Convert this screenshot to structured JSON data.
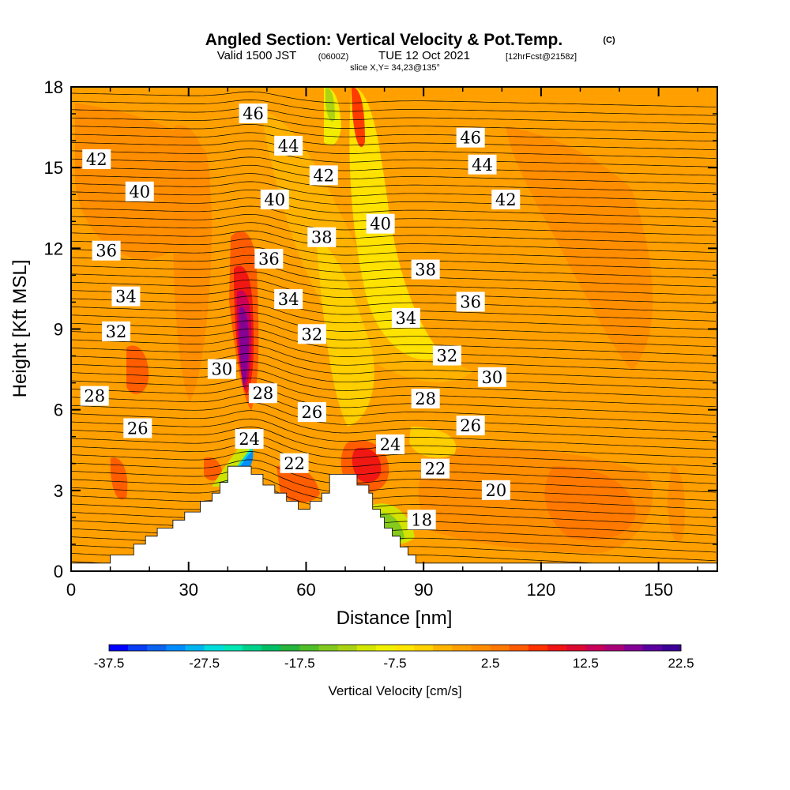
{
  "header": {
    "title": "Angled Section: Vertical Velocity & Pot.Temp.",
    "copyright": "(C)",
    "valid_prefix": "Valid 1500 JST",
    "valid_utc": "(0600Z)",
    "valid_date": "TUE 12 Oct 2021",
    "forecast": "[12hrFcst@2158z]",
    "slice": "slice X,Y= 34,23@135°"
  },
  "chart_data": {
    "type": "heatmap",
    "xlabel": "Distance [nm]",
    "ylabel": "Height [Kft MSL]",
    "xlim": [
      0,
      165
    ],
    "ylim": [
      0,
      18
    ],
    "x_ticks": [
      "0",
      "30",
      "60",
      "90",
      "120",
      "150"
    ],
    "y_ticks": [
      "0",
      "3",
      "6",
      "9",
      "12",
      "15",
      "18"
    ],
    "colorbar": {
      "label": "Vertical Velocity [cm/s]",
      "tick_labels": [
        "-37.5",
        "-27.5",
        "-17.5",
        "-7.5",
        "2.5",
        "12.5",
        "22.5"
      ],
      "min": -37.5,
      "max": 22.5,
      "step": 2.5,
      "colors": [
        "#0000ff",
        "#0a3cf5",
        "#0a64f0",
        "#008cff",
        "#00b4f0",
        "#00dcdc",
        "#00e6b4",
        "#00d28c",
        "#00be64",
        "#28b43c",
        "#50be28",
        "#82c81e",
        "#aad214",
        "#d2e600",
        "#f0f000",
        "#ffe600",
        "#ffd200",
        "#ffb400",
        "#ffa000",
        "#ff8c00",
        "#ff7800",
        "#ff5a00",
        "#ff3200",
        "#f01414",
        "#dc0a32",
        "#c8005a",
        "#aa0078",
        "#820096",
        "#5a00a0",
        "#3c0096"
      ]
    },
    "terrain": [
      [
        0,
        0.3
      ],
      [
        10,
        0.3
      ],
      [
        10,
        0.6
      ],
      [
        16,
        0.6
      ],
      [
        16,
        1.0
      ],
      [
        19,
        1.0
      ],
      [
        19,
        1.3
      ],
      [
        22,
        1.3
      ],
      [
        22,
        1.6
      ],
      [
        26,
        1.6
      ],
      [
        26,
        1.9
      ],
      [
        29,
        1.9
      ],
      [
        29,
        2.2
      ],
      [
        33,
        2.2
      ],
      [
        33,
        2.6
      ],
      [
        36,
        2.6
      ],
      [
        36,
        2.9
      ],
      [
        38,
        2.9
      ],
      [
        38,
        3.3
      ],
      [
        40,
        3.3
      ],
      [
        40,
        3.9
      ],
      [
        46,
        3.9
      ],
      [
        46,
        3.6
      ],
      [
        49,
        3.6
      ],
      [
        49,
        3.2
      ],
      [
        52,
        3.2
      ],
      [
        52,
        2.9
      ],
      [
        55,
        2.9
      ],
      [
        55,
        2.6
      ],
      [
        58,
        2.6
      ],
      [
        58,
        2.3
      ],
      [
        61,
        2.3
      ],
      [
        61,
        2.6
      ],
      [
        64,
        2.6
      ],
      [
        64,
        2.9
      ],
      [
        66,
        2.9
      ],
      [
        66,
        3.6
      ],
      [
        73,
        3.6
      ],
      [
        73,
        3.2
      ],
      [
        76,
        3.2
      ],
      [
        76,
        2.9
      ],
      [
        77,
        2.9
      ],
      [
        77,
        2.3
      ],
      [
        79,
        2.3
      ],
      [
        79,
        2.0
      ],
      [
        80,
        2.0
      ],
      [
        80,
        1.6
      ],
      [
        82,
        1.6
      ],
      [
        82,
        1.3
      ],
      [
        84,
        1.3
      ],
      [
        84,
        0.9
      ],
      [
        86,
        0.9
      ],
      [
        86,
        0.6
      ],
      [
        88,
        0.6
      ],
      [
        88,
        0.3
      ],
      [
        165,
        0.3
      ]
    ],
    "contour_labels": [
      {
        "text": "46",
        "x": 46.5,
        "y": 17.0
      },
      {
        "text": "46",
        "x": 102,
        "y": 16.1
      },
      {
        "text": "44",
        "x": 55.5,
        "y": 15.8
      },
      {
        "text": "44",
        "x": 105,
        "y": 15.1
      },
      {
        "text": "42",
        "x": 6.5,
        "y": 15.3
      },
      {
        "text": "42",
        "x": 64.5,
        "y": 14.7
      },
      {
        "text": "42",
        "x": 111,
        "y": 13.8
      },
      {
        "text": "40",
        "x": 17.5,
        "y": 14.1
      },
      {
        "text": "40",
        "x": 52,
        "y": 13.8
      },
      {
        "text": "40",
        "x": 79,
        "y": 12.9
      },
      {
        "text": "38",
        "x": 64,
        "y": 12.4
      },
      {
        "text": "38",
        "x": 90.5,
        "y": 11.2
      },
      {
        "text": "36",
        "x": 9,
        "y": 11.9
      },
      {
        "text": "36",
        "x": 50.5,
        "y": 11.6
      },
      {
        "text": "36",
        "x": 102,
        "y": 10.0
      },
      {
        "text": "34",
        "x": 14,
        "y": 10.2
      },
      {
        "text": "34",
        "x": 55.5,
        "y": 10.1
      },
      {
        "text": "34",
        "x": 85.5,
        "y": 9.4
      },
      {
        "text": "32",
        "x": 11.5,
        "y": 8.9
      },
      {
        "text": "32",
        "x": 61.5,
        "y": 8.8
      },
      {
        "text": "32",
        "x": 96,
        "y": 8.0
      },
      {
        "text": "30",
        "x": 38.5,
        "y": 7.5
      },
      {
        "text": "30",
        "x": 107.5,
        "y": 7.2
      },
      {
        "text": "28",
        "x": 6,
        "y": 6.5
      },
      {
        "text": "28",
        "x": 49,
        "y": 6.6
      },
      {
        "text": "28",
        "x": 90.5,
        "y": 6.4
      },
      {
        "text": "26",
        "x": 17,
        "y": 5.3
      },
      {
        "text": "26",
        "x": 61.5,
        "y": 5.9
      },
      {
        "text": "26",
        "x": 102,
        "y": 5.4
      },
      {
        "text": "24",
        "x": 45.5,
        "y": 4.9
      },
      {
        "text": "24",
        "x": 81.5,
        "y": 4.7
      },
      {
        "text": "22",
        "x": 57,
        "y": 4.0
      },
      {
        "text": "22",
        "x": 93,
        "y": 3.8
      },
      {
        "text": "20",
        "x": 108.5,
        "y": 3.0
      },
      {
        "text": "18",
        "x": 89.5,
        "y": 1.9
      }
    ]
  }
}
